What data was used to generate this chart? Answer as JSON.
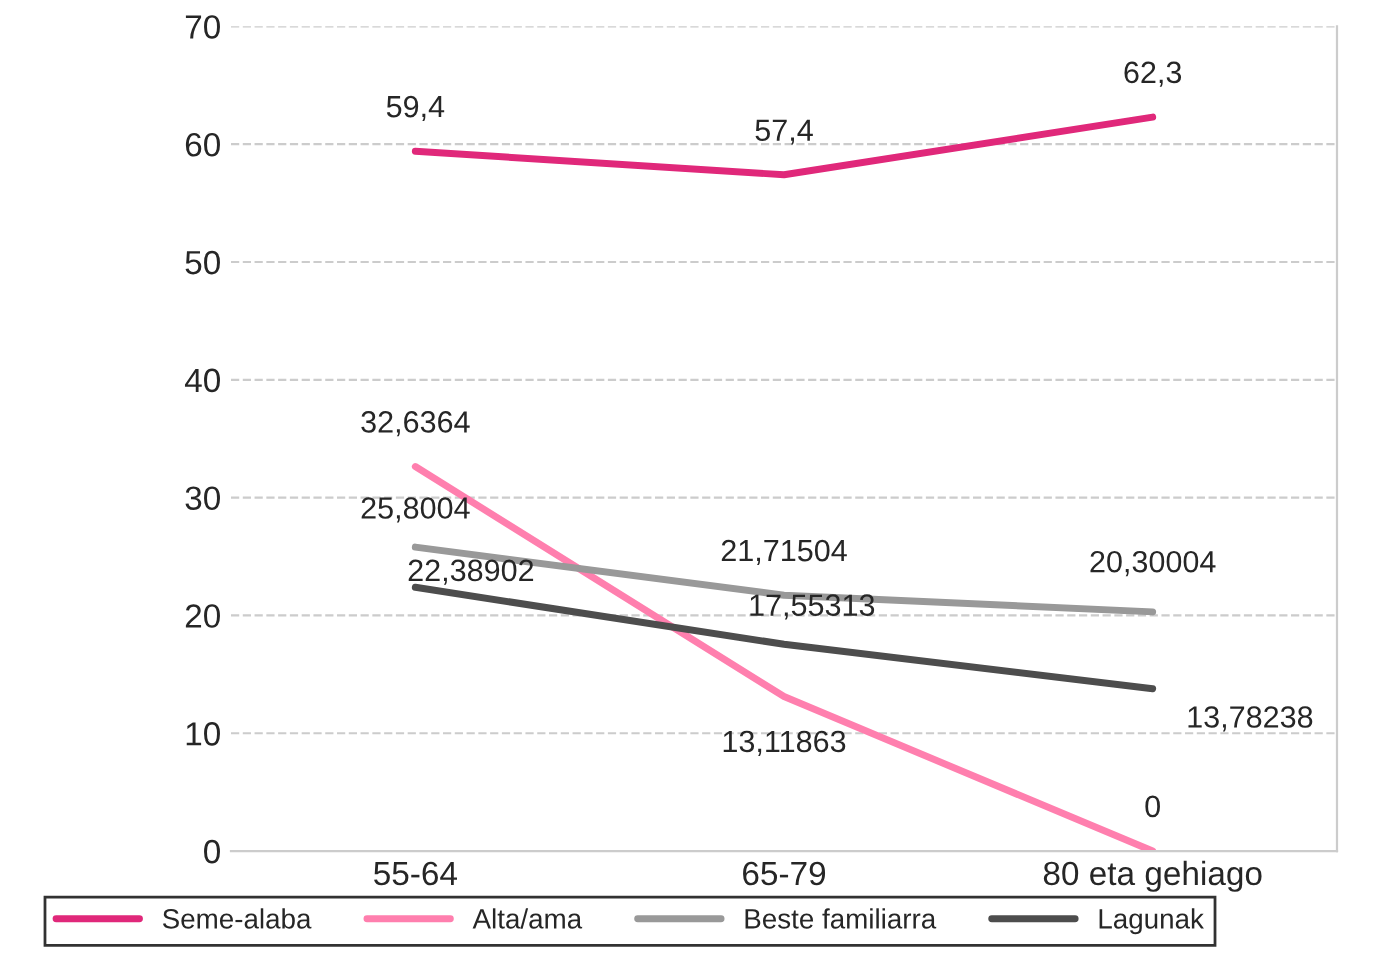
{
  "chart_data": {
    "type": "line",
    "categories": [
      "55-64",
      "65-79",
      "80 eta gehiago"
    ],
    "series": [
      {
        "name": "Seme-alaba",
        "color": "#e0287a",
        "values": [
          59.4,
          57.4,
          62.3
        ],
        "value_labels": [
          "59,4",
          "57,4",
          "62,3"
        ]
      },
      {
        "name": "Alta/ama",
        "color": "#ff7fae",
        "values": [
          32.6364,
          13.11863,
          0
        ],
        "value_labels": [
          "32,6364",
          "13,11863",
          "0"
        ]
      },
      {
        "name": "Beste familiarra",
        "color": "#999999",
        "values": [
          25.8004,
          21.71504,
          20.30004
        ],
        "value_labels": [
          "25,8004",
          "21,71504",
          "20,30004"
        ]
      },
      {
        "name": "Lagunak",
        "color": "#4d4d4d",
        "values": [
          22.38902,
          17.55313,
          13.78238
        ],
        "value_labels": [
          "22,38902",
          "17,55313",
          "13,78238"
        ]
      }
    ],
    "ylim": [
      0,
      70
    ],
    "yticks": [
      0,
      10,
      20,
      30,
      40,
      50,
      60,
      70
    ],
    "grid": "y",
    "legend": "bottom",
    "marker": "none",
    "line_style": "solid"
  }
}
